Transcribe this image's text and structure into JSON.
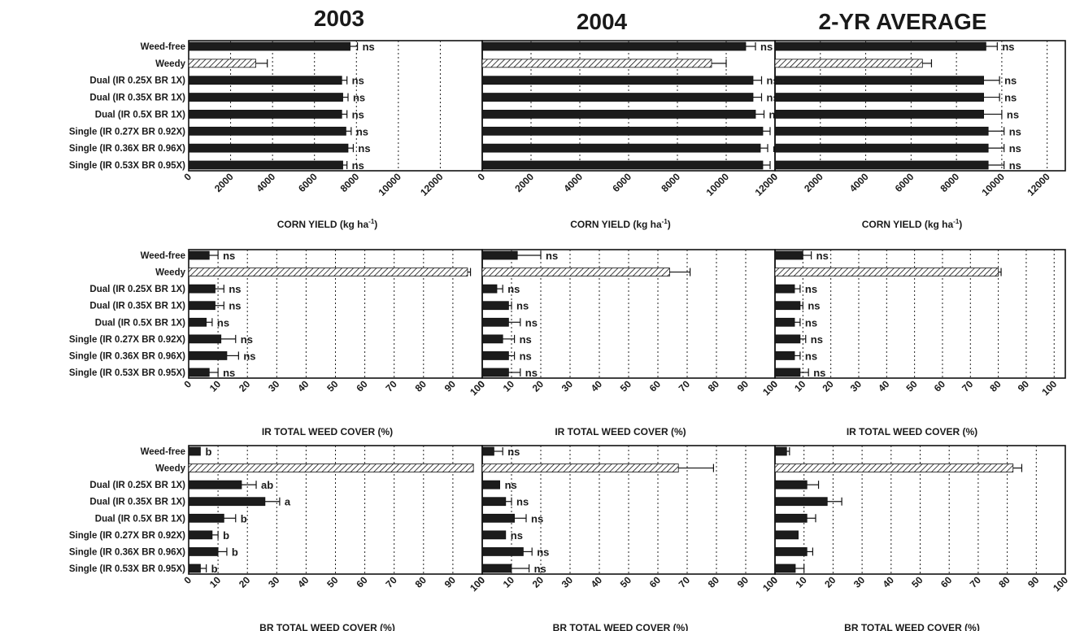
{
  "colors": {
    "bar": "#1c1c1c",
    "weedy_hatch": "#ffffff"
  },
  "figure": {
    "columns": [
      "2003",
      "2004",
      "2-YR AVERAGE"
    ]
  },
  "chart_data": [
    {
      "type": "bar",
      "orientation": "horizontal",
      "panel": "2003",
      "categories": [
        "Weed-free",
        "Weedy",
        "Dual (IR 0.25X BR 1X)",
        "Dual (IR 0.35X BR 1X)",
        "Dual (IR 0.5X BR 1X)",
        "Single (IR 0.27X BR 0.92X)",
        "Single (IR 0.36X BR 0.96X)",
        "Single (IR 0.53X BR 0.95X)"
      ],
      "values": [
        7700,
        3200,
        7300,
        7350,
        7300,
        7500,
        7600,
        7350
      ],
      "errors": [
        350,
        550,
        250,
        250,
        250,
        250,
        250,
        200
      ],
      "labels": [
        "ns",
        "",
        "ns",
        "ns",
        "ns",
        "ns",
        "ns",
        "ns"
      ],
      "xlim": [
        0,
        14000
      ],
      "ticks": [
        0,
        2000,
        4000,
        6000,
        8000,
        10000,
        12000
      ],
      "xlabel": "CORN YIELD (kg ha",
      "xlabel_sup": "-1",
      "xlabel_tail": ")"
    },
    {
      "type": "bar",
      "orientation": "horizontal",
      "panel": "2004",
      "categories": [
        "Weed-free",
        "Weedy",
        "Dual (IR 0.25X BR 1X)",
        "Dual (IR 0.35X BR 1X)",
        "Dual (IR 0.5X BR 1X)",
        "Single (IR 0.27X BR 0.92X)",
        "Single (IR 0.36X BR 0.96X)",
        "Single (IR 0.53X BR 0.95X)"
      ],
      "values": [
        10800,
        9400,
        11100,
        11100,
        11200,
        11500,
        11400,
        11500
      ],
      "errors": [
        400,
        600,
        350,
        350,
        350,
        300,
        300,
        300
      ],
      "labels": [
        "ns",
        "",
        "ns",
        "ns",
        "ns",
        "ns",
        "ns",
        "ns"
      ],
      "xlim": [
        0,
        12000
      ],
      "ticks": [
        0,
        2000,
        4000,
        6000,
        8000,
        10000,
        12000
      ],
      "xlabel": "CORN YIELD (kg ha",
      "xlabel_sup": "-1",
      "xlabel_tail": ")"
    },
    {
      "type": "bar",
      "orientation": "horizontal",
      "panel": "2-YR AVERAGE",
      "categories": [
        "Weed-free",
        "Weedy",
        "Dual (IR 0.25X BR 1X)",
        "Dual (IR 0.35X BR 1X)",
        "Dual (IR 0.5X BR 1X)",
        "Single (IR 0.27X BR 0.92X)",
        "Single (IR 0.36X BR 0.96X)",
        "Single (IR 0.53X BR 0.95X)"
      ],
      "values": [
        9300,
        6500,
        9200,
        9200,
        9200,
        9400,
        9400,
        9400
      ],
      "errors": [
        500,
        400,
        700,
        700,
        800,
        700,
        700,
        700
      ],
      "labels": [
        "ns",
        "",
        "ns",
        "ns",
        "ns",
        "ns",
        "ns",
        "ns"
      ],
      "xlim": [
        0,
        12800
      ],
      "ticks": [
        0,
        2000,
        4000,
        6000,
        8000,
        10000,
        12000
      ],
      "xlabel": "CORN YIELD (kg ha",
      "xlabel_sup": "-1",
      "xlabel_tail": ")"
    },
    {
      "type": "bar",
      "orientation": "horizontal",
      "panel": "2003",
      "categories": [
        "Weed-free",
        "Weedy",
        "Dual (IR 0.25X BR 1X)",
        "Dual (IR 0.35X BR 1X)",
        "Dual (IR 0.5X BR 1X)",
        "Single (IR 0.27X BR 0.92X)",
        "Single (IR 0.36X BR 0.96X)",
        "Single (IR 0.53X BR 0.95X)"
      ],
      "values": [
        7,
        95,
        9,
        9,
        6,
        11,
        13,
        7
      ],
      "errors": [
        3,
        1,
        3,
        3,
        2,
        5,
        4,
        3
      ],
      "labels": [
        "ns",
        "",
        "ns",
        "ns",
        "ns",
        "ns",
        "ns",
        "ns"
      ],
      "xlim": [
        0,
        100
      ],
      "ticks": [
        0,
        10,
        20,
        30,
        40,
        50,
        60,
        70,
        80,
        90,
        100
      ],
      "xlabel": "IR TOTAL WEED COVER (%)"
    },
    {
      "type": "bar",
      "orientation": "horizontal",
      "panel": "2004",
      "categories": [
        "Weed-free",
        "Weedy",
        "Dual (IR 0.25X BR 1X)",
        "Dual (IR 0.35X BR 1X)",
        "Dual (IR 0.5X BR 1X)",
        "Single (IR 0.27X BR 0.92X)",
        "Single (IR 0.36X BR 0.96X)",
        "Single (IR 0.53X BR 0.95X)"
      ],
      "values": [
        12,
        64,
        5,
        9,
        9,
        7,
        9,
        9
      ],
      "errors": [
        8,
        7,
        2,
        1,
        4,
        4,
        2,
        4
      ],
      "labels": [
        "ns",
        "",
        "ns",
        "ns",
        "ns",
        "ns",
        "ns",
        "ns"
      ],
      "xlim": [
        0,
        100
      ],
      "ticks": [
        0,
        10,
        20,
        30,
        40,
        50,
        60,
        70,
        80,
        90,
        100
      ],
      "xlabel": "IR TOTAL WEED COVER (%)"
    },
    {
      "type": "bar",
      "orientation": "horizontal",
      "panel": "2-YR AVERAGE",
      "categories": [
        "Weed-free",
        "Weedy",
        "Dual (IR 0.25X BR 1X)",
        "Dual (IR 0.35X BR 1X)",
        "Dual (IR 0.5X BR 1X)",
        "Single (IR 0.27X BR 0.92X)",
        "Single (IR 0.36X BR 0.96X)",
        "Single (IR 0.53X BR 0.95X)"
      ],
      "values": [
        10,
        80,
        7,
        9,
        7,
        9,
        7,
        9
      ],
      "errors": [
        3,
        1,
        2,
        1,
        2,
        2,
        2,
        3
      ],
      "labels": [
        "ns",
        "",
        "ns",
        "ns",
        "ns",
        "ns",
        "ns",
        "ns"
      ],
      "xlim": [
        0,
        104
      ],
      "ticks": [
        0,
        10,
        20,
        30,
        40,
        50,
        60,
        70,
        80,
        90,
        100
      ],
      "xlabel": "IR TOTAL WEED COVER (%)"
    },
    {
      "type": "bar",
      "orientation": "horizontal",
      "panel": "2003",
      "categories": [
        "Weed-free",
        "Weedy",
        "Dual (IR 0.25X BR 1X)",
        "Dual (IR 0.35X BR 1X)",
        "Dual (IR 0.5X BR 1X)",
        "Single (IR 0.27X BR 0.92X)",
        "Single (IR 0.36X BR 0.96X)",
        "Single (IR 0.53X BR 0.95X)"
      ],
      "values": [
        4,
        97,
        18,
        26,
        12,
        8,
        10,
        4
      ],
      "errors": [
        0,
        0,
        5,
        5,
        4,
        2,
        3,
        2
      ],
      "labels": [
        "b",
        "",
        "ab",
        "a",
        "b",
        "b",
        "b",
        "b"
      ],
      "xlim": [
        0,
        100
      ],
      "ticks": [
        0,
        10,
        20,
        30,
        40,
        50,
        60,
        70,
        80,
        90,
        100
      ],
      "xlabel": "BR TOTAL WEED COVER (%)"
    },
    {
      "type": "bar",
      "orientation": "horizontal",
      "panel": "2004",
      "categories": [
        "Weed-free",
        "Weedy",
        "Dual (IR 0.25X BR 1X)",
        "Dual (IR 0.35X BR 1X)",
        "Dual (IR 0.5X BR 1X)",
        "Single (IR 0.27X BR 0.92X)",
        "Single (IR 0.36X BR 0.96X)",
        "Single (IR 0.53X BR 0.95X)"
      ],
      "values": [
        4,
        67,
        6,
        8,
        11,
        8,
        14,
        10
      ],
      "errors": [
        3,
        12,
        0,
        2,
        4,
        0,
        3,
        6
      ],
      "labels": [
        "ns",
        "",
        "ns",
        "ns",
        "ns",
        "ns",
        "ns",
        "ns"
      ],
      "xlim": [
        0,
        100
      ],
      "ticks": [
        0,
        10,
        20,
        30,
        40,
        50,
        60,
        70,
        80,
        90,
        100
      ],
      "xlabel": "BR TOTAL WEED COVER (%)"
    },
    {
      "type": "bar",
      "orientation": "horizontal",
      "panel": "2-YR AVERAGE",
      "categories": [
        "Weed-free",
        "Weedy",
        "Dual (IR 0.25X BR 1X)",
        "Dual (IR 0.35X BR 1X)",
        "Dual (IR 0.5X BR 1X)",
        "Single (IR 0.27X BR 0.92X)",
        "Single (IR 0.36X BR 0.96X)",
        "Single (IR 0.53X BR 0.95X)"
      ],
      "values": [
        4,
        82,
        11,
        18,
        11,
        8,
        11,
        7
      ],
      "errors": [
        1,
        3,
        4,
        5,
        3,
        0,
        2,
        3
      ],
      "labels": [
        "",
        "",
        "",
        "",
        "",
        "",
        "",
        ""
      ],
      "xlim": [
        0,
        100
      ],
      "ticks": [
        0,
        10,
        20,
        30,
        40,
        50,
        60,
        70,
        80,
        90,
        100
      ],
      "xlabel": "BR TOTAL WEED COVER (%)"
    }
  ]
}
